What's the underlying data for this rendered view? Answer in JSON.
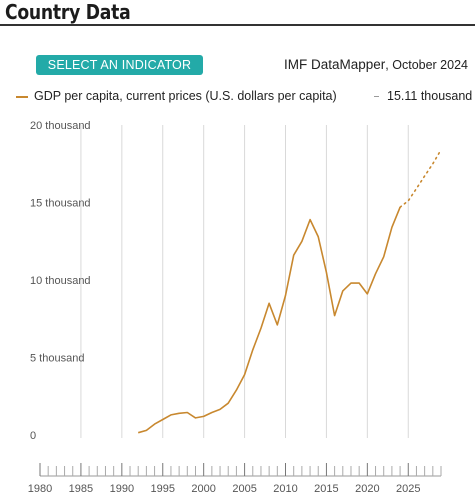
{
  "header": {
    "title": "Country Data"
  },
  "controls": {
    "select_indicator_label": "SELECT AN INDICATOR"
  },
  "source": {
    "name": "IMF DataMapper",
    "edition": ", October 2024"
  },
  "legend": {
    "series_label": "GDP per capita, current prices (U.S. dollars per capita)",
    "latest_value": "15.11 thousand"
  },
  "colors": {
    "series": "#c8882f",
    "accent": "#23aaa8",
    "grid": "#d9d9d9"
  },
  "chart_data": {
    "type": "line",
    "ylabel": "",
    "xlabel": "",
    "xlim": [
      1980,
      2029
    ],
    "ylim": [
      0,
      20000
    ],
    "y_ticks": [
      {
        "value": 0,
        "label": "0"
      },
      {
        "value": 5000,
        "label": "5 thousand"
      },
      {
        "value": 10000,
        "label": "10 thousand"
      },
      {
        "value": 15000,
        "label": "15 thousand"
      },
      {
        "value": 20000,
        "label": "20 thousand"
      }
    ],
    "x_ticks": [
      1980,
      1985,
      1990,
      1995,
      2000,
      2005,
      2010,
      2015,
      2020,
      2025
    ],
    "grid": "vertical",
    "series": [
      {
        "name": "GDP per capita, current prices (U.S. dollars per capita)",
        "x": [
          1992,
          1993,
          1994,
          1995,
          1996,
          1997,
          1998,
          1999,
          2000,
          2001,
          2002,
          2003,
          2004,
          2005,
          2006,
          2007,
          2008,
          2009,
          2010,
          2011,
          2012,
          2013,
          2014,
          2015,
          2016,
          2017,
          2018,
          2019,
          2020,
          2021,
          2022,
          2023,
          2024
        ],
        "y": [
          150,
          300,
          700,
          1000,
          1300,
          1400,
          1450,
          1100,
          1200,
          1450,
          1650,
          2050,
          2900,
          3900,
          5500,
          6900,
          8500,
          7100,
          9000,
          11600,
          12500,
          13900,
          12800,
          10500,
          7700,
          9300,
          9800,
          9800,
          9100,
          10400,
          11500,
          13400,
          14700
        ]
      },
      {
        "name": "Projection",
        "projection": true,
        "x": [
          2024,
          2025,
          2026,
          2027,
          2028,
          2029
        ],
        "y": [
          14700,
          15110,
          15900,
          16700,
          17500,
          18400
        ]
      }
    ]
  }
}
